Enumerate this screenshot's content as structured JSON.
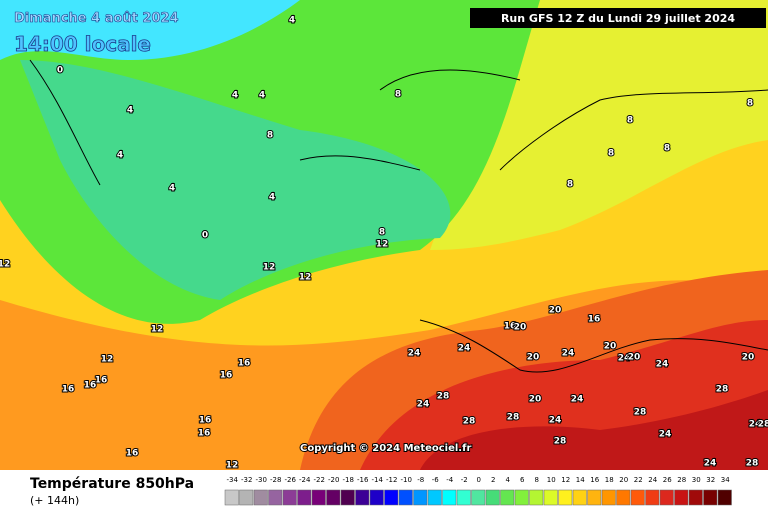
{
  "header": {
    "date": "Dimanche 4 août 2024",
    "time": "14:00 locale",
    "run": "Run GFS 12 Z du Lundi 29 juillet 2024"
  },
  "map": {
    "copyright": "Copyright © 2024 Meteociel.fr",
    "contour_labels": [
      4,
      0,
      4,
      4,
      4,
      8,
      8,
      4,
      4,
      4,
      0,
      8,
      12,
      12,
      12,
      12,
      12,
      12,
      16,
      16,
      16,
      16,
      16,
      16,
      16,
      16,
      12,
      8,
      8,
      8,
      8,
      8,
      20,
      16,
      16,
      20,
      24,
      24,
      20,
      24,
      20,
      24,
      20,
      24,
      20,
      28,
      24,
      20,
      24,
      28,
      28,
      24,
      28,
      24,
      28,
      28,
      28,
      24,
      24,
      28
    ]
  },
  "footer": {
    "title": "Température 850hPa",
    "subtitle": "(+ 144h)"
  },
  "legend": {
    "labels": [
      -34,
      -32,
      -30,
      -28,
      -26,
      -24,
      -22,
      -20,
      -18,
      -16,
      -14,
      -12,
      -10,
      -8,
      -6,
      -4,
      -2,
      0,
      2,
      4,
      6,
      8,
      10,
      12,
      14,
      16,
      18,
      20,
      22,
      24,
      26,
      28,
      30,
      32,
      34
    ],
    "colors": [
      "#c8c8c8",
      "#b4b4b4",
      "#a08ca0",
      "#9664a0",
      "#8c3c96",
      "#7d1e8c",
      "#780078",
      "#640064",
      "#500050",
      "#3c0096",
      "#1e00c8",
      "#0000ff",
      "#0050ff",
      "#0096ff",
      "#00c8ff",
      "#00ffff",
      "#32ffd2",
      "#50e6a0",
      "#46dc78",
      "#64e650",
      "#82f03c",
      "#b4f532",
      "#dcfa28",
      "#fff01e",
      "#ffd214",
      "#ffb40f",
      "#ff9600",
      "#ff7800",
      "#ff5a0a",
      "#f03c14",
      "#dc281e",
      "#c81414",
      "#a00a0a",
      "#780000",
      "#500000"
    ]
  }
}
